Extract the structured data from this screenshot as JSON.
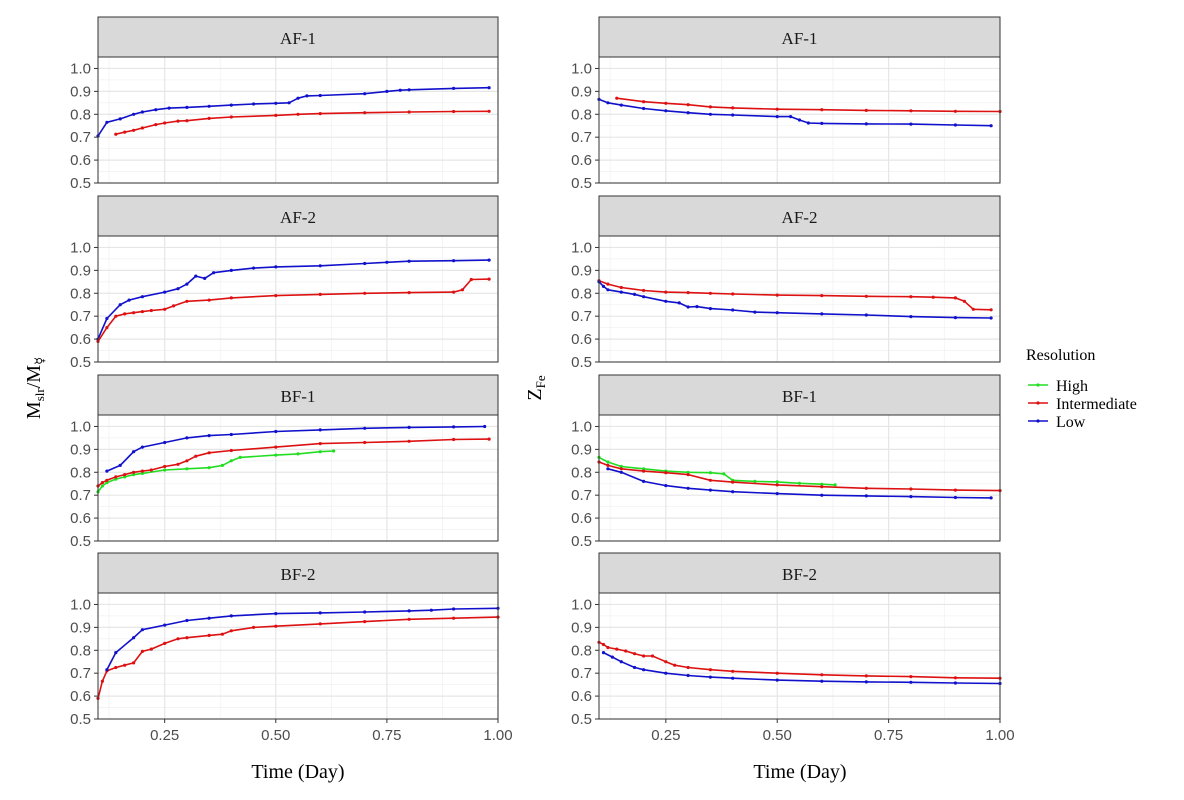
{
  "chart_data": {
    "type": "line",
    "layout": "faceted 4 rows x 2 columns",
    "x_label": "Time (Day)",
    "x_ticks": [
      "0.25",
      "0.50",
      "0.75",
      "1.00"
    ],
    "xlim": [
      0.1,
      1.0
    ],
    "y_ticks": [
      "0.5",
      "0.6",
      "0.7",
      "0.8",
      "0.9",
      "1.0"
    ],
    "ylim": [
      0.5,
      1.05
    ],
    "legend": {
      "title": "Resolution",
      "entries": [
        {
          "name": "High",
          "color": "#22dd22"
        },
        {
          "name": "Intermediate",
          "color": "#dd1111"
        },
        {
          "name": "Low",
          "color": "#1111cc"
        }
      ]
    },
    "columns": [
      {
        "y_label_main": "M",
        "y_label_sub": "slr",
        "y_label_sep": "/M",
        "y_label_sub2": "☿",
        "panels": [
          {
            "strip": "AF-1",
            "series": [
              {
                "name": "Low",
                "x": [
                  0.1,
                  0.12,
                  0.15,
                  0.18,
                  0.2,
                  0.23,
                  0.26,
                  0.3,
                  0.35,
                  0.4,
                  0.45,
                  0.5,
                  0.53,
                  0.55,
                  0.57,
                  0.6,
                  0.7,
                  0.75,
                  0.78,
                  0.8,
                  0.9,
                  0.98
                ],
                "y": [
                  0.705,
                  0.765,
                  0.78,
                  0.8,
                  0.81,
                  0.82,
                  0.827,
                  0.83,
                  0.835,
                  0.84,
                  0.845,
                  0.848,
                  0.85,
                  0.87,
                  0.88,
                  0.882,
                  0.89,
                  0.9,
                  0.905,
                  0.907,
                  0.913,
                  0.916
                ]
              },
              {
                "name": "Intermediate",
                "x": [
                  0.14,
                  0.16,
                  0.18,
                  0.2,
                  0.23,
                  0.25,
                  0.28,
                  0.3,
                  0.35,
                  0.4,
                  0.5,
                  0.55,
                  0.6,
                  0.7,
                  0.8,
                  0.9,
                  0.98
                ],
                "y": [
                  0.713,
                  0.722,
                  0.73,
                  0.74,
                  0.755,
                  0.762,
                  0.77,
                  0.772,
                  0.782,
                  0.788,
                  0.795,
                  0.8,
                  0.803,
                  0.807,
                  0.81,
                  0.812,
                  0.813
                ]
              }
            ]
          },
          {
            "strip": "AF-2",
            "series": [
              {
                "name": "Low",
                "x": [
                  0.1,
                  0.12,
                  0.15,
                  0.17,
                  0.2,
                  0.25,
                  0.28,
                  0.3,
                  0.32,
                  0.34,
                  0.36,
                  0.4,
                  0.45,
                  0.5,
                  0.6,
                  0.7,
                  0.75,
                  0.8,
                  0.9,
                  0.98
                ],
                "y": [
                  0.6,
                  0.69,
                  0.75,
                  0.77,
                  0.785,
                  0.805,
                  0.82,
                  0.84,
                  0.875,
                  0.865,
                  0.89,
                  0.9,
                  0.91,
                  0.915,
                  0.92,
                  0.93,
                  0.935,
                  0.94,
                  0.942,
                  0.945
                ]
              },
              {
                "name": "Intermediate",
                "x": [
                  0.1,
                  0.12,
                  0.14,
                  0.16,
                  0.18,
                  0.2,
                  0.22,
                  0.25,
                  0.27,
                  0.3,
                  0.35,
                  0.4,
                  0.5,
                  0.6,
                  0.7,
                  0.8,
                  0.9,
                  0.92,
                  0.94,
                  0.98
                ],
                "y": [
                  0.59,
                  0.65,
                  0.7,
                  0.71,
                  0.715,
                  0.72,
                  0.725,
                  0.73,
                  0.745,
                  0.765,
                  0.77,
                  0.78,
                  0.79,
                  0.795,
                  0.8,
                  0.803,
                  0.805,
                  0.815,
                  0.86,
                  0.862
                ]
              }
            ]
          },
          {
            "strip": "BF-1",
            "series": [
              {
                "name": "High",
                "x": [
                  0.1,
                  0.11,
                  0.12,
                  0.14,
                  0.16,
                  0.18,
                  0.2,
                  0.25,
                  0.3,
                  0.35,
                  0.38,
                  0.4,
                  0.42,
                  0.5,
                  0.55,
                  0.6,
                  0.63
                ],
                "y": [
                  0.715,
                  0.74,
                  0.755,
                  0.77,
                  0.78,
                  0.79,
                  0.795,
                  0.81,
                  0.815,
                  0.82,
                  0.83,
                  0.85,
                  0.865,
                  0.875,
                  0.88,
                  0.89,
                  0.893
                ]
              },
              {
                "name": "Intermediate",
                "x": [
                  0.1,
                  0.11,
                  0.12,
                  0.14,
                  0.16,
                  0.18,
                  0.2,
                  0.22,
                  0.25,
                  0.28,
                  0.3,
                  0.32,
                  0.35,
                  0.4,
                  0.5,
                  0.6,
                  0.7,
                  0.8,
                  0.9,
                  0.98
                ],
                "y": [
                  0.74,
                  0.755,
                  0.765,
                  0.78,
                  0.79,
                  0.8,
                  0.805,
                  0.81,
                  0.825,
                  0.835,
                  0.85,
                  0.87,
                  0.885,
                  0.895,
                  0.91,
                  0.925,
                  0.93,
                  0.935,
                  0.943,
                  0.945
                ]
              },
              {
                "name": "Low",
                "x": [
                  0.12,
                  0.15,
                  0.18,
                  0.2,
                  0.25,
                  0.3,
                  0.35,
                  0.4,
                  0.5,
                  0.6,
                  0.7,
                  0.8,
                  0.9,
                  0.97
                ],
                "y": [
                  0.805,
                  0.83,
                  0.89,
                  0.91,
                  0.93,
                  0.95,
                  0.96,
                  0.965,
                  0.978,
                  0.985,
                  0.992,
                  0.996,
                  0.998,
                  1.0
                ]
              }
            ]
          },
          {
            "strip": "BF-2",
            "series": [
              {
                "name": "Intermediate",
                "x": [
                  0.1,
                  0.11,
                  0.12,
                  0.14,
                  0.16,
                  0.18,
                  0.2,
                  0.22,
                  0.25,
                  0.28,
                  0.3,
                  0.35,
                  0.38,
                  0.4,
                  0.45,
                  0.5,
                  0.6,
                  0.7,
                  0.8,
                  0.9,
                  1.0
                ],
                "y": [
                  0.59,
                  0.665,
                  0.71,
                  0.725,
                  0.735,
                  0.745,
                  0.795,
                  0.805,
                  0.83,
                  0.85,
                  0.855,
                  0.865,
                  0.87,
                  0.885,
                  0.9,
                  0.905,
                  0.915,
                  0.925,
                  0.935,
                  0.94,
                  0.945
                ]
              },
              {
                "name": "Low",
                "x": [
                  0.12,
                  0.14,
                  0.18,
                  0.2,
                  0.25,
                  0.3,
                  0.35,
                  0.4,
                  0.5,
                  0.6,
                  0.7,
                  0.8,
                  0.85,
                  0.9,
                  1.0
                ],
                "y": [
                  0.715,
                  0.79,
                  0.855,
                  0.89,
                  0.91,
                  0.93,
                  0.94,
                  0.95,
                  0.96,
                  0.963,
                  0.967,
                  0.972,
                  0.975,
                  0.98,
                  0.983
                ]
              }
            ]
          }
        ]
      },
      {
        "y_label_main": "Z",
        "y_label_sub": "Fe",
        "y_label_sep": "",
        "y_label_sub2": "",
        "panels": [
          {
            "strip": "AF-1",
            "series": [
              {
                "name": "Intermediate",
                "x": [
                  0.14,
                  0.2,
                  0.25,
                  0.3,
                  0.35,
                  0.4,
                  0.5,
                  0.6,
                  0.7,
                  0.8,
                  0.9,
                  1.0
                ],
                "y": [
                  0.87,
                  0.855,
                  0.848,
                  0.842,
                  0.832,
                  0.828,
                  0.822,
                  0.82,
                  0.817,
                  0.815,
                  0.813,
                  0.812
                ]
              },
              {
                "name": "Low",
                "x": [
                  0.1,
                  0.12,
                  0.15,
                  0.2,
                  0.25,
                  0.3,
                  0.35,
                  0.4,
                  0.5,
                  0.53,
                  0.55,
                  0.57,
                  0.6,
                  0.7,
                  0.8,
                  0.9,
                  0.98
                ],
                "y": [
                  0.865,
                  0.85,
                  0.84,
                  0.825,
                  0.815,
                  0.807,
                  0.8,
                  0.797,
                  0.79,
                  0.79,
                  0.775,
                  0.762,
                  0.76,
                  0.758,
                  0.757,
                  0.753,
                  0.75
                ]
              }
            ]
          },
          {
            "strip": "AF-2",
            "series": [
              {
                "name": "Intermediate",
                "x": [
                  0.1,
                  0.12,
                  0.15,
                  0.2,
                  0.25,
                  0.3,
                  0.35,
                  0.4,
                  0.5,
                  0.6,
                  0.7,
                  0.8,
                  0.85,
                  0.9,
                  0.92,
                  0.94,
                  0.98
                ],
                "y": [
                  0.855,
                  0.84,
                  0.825,
                  0.812,
                  0.805,
                  0.803,
                  0.8,
                  0.797,
                  0.792,
                  0.79,
                  0.787,
                  0.785,
                  0.783,
                  0.78,
                  0.765,
                  0.73,
                  0.728
                ]
              },
              {
                "name": "Low",
                "x": [
                  0.1,
                  0.11,
                  0.12,
                  0.15,
                  0.18,
                  0.2,
                  0.25,
                  0.28,
                  0.3,
                  0.32,
                  0.35,
                  0.4,
                  0.45,
                  0.5,
                  0.6,
                  0.7,
                  0.8,
                  0.9,
                  0.98
                ],
                "y": [
                  0.85,
                  0.83,
                  0.815,
                  0.805,
                  0.795,
                  0.785,
                  0.765,
                  0.758,
                  0.74,
                  0.742,
                  0.733,
                  0.727,
                  0.718,
                  0.715,
                  0.71,
                  0.705,
                  0.698,
                  0.694,
                  0.692
                ]
              }
            ]
          },
          {
            "strip": "BF-1",
            "series": [
              {
                "name": "High",
                "x": [
                  0.1,
                  0.12,
                  0.15,
                  0.2,
                  0.25,
                  0.3,
                  0.35,
                  0.38,
                  0.4,
                  0.45,
                  0.5,
                  0.55,
                  0.6,
                  0.63
                ],
                "y": [
                  0.865,
                  0.845,
                  0.825,
                  0.815,
                  0.805,
                  0.8,
                  0.798,
                  0.793,
                  0.765,
                  0.76,
                  0.758,
                  0.752,
                  0.748,
                  0.745
                ]
              },
              {
                "name": "Intermediate",
                "x": [
                  0.1,
                  0.12,
                  0.15,
                  0.2,
                  0.25,
                  0.3,
                  0.35,
                  0.4,
                  0.5,
                  0.6,
                  0.7,
                  0.8,
                  0.9,
                  1.0
                ],
                "y": [
                  0.845,
                  0.83,
                  0.815,
                  0.805,
                  0.798,
                  0.79,
                  0.765,
                  0.757,
                  0.745,
                  0.737,
                  0.73,
                  0.727,
                  0.722,
                  0.72
                ]
              },
              {
                "name": "Low",
                "x": [
                  0.12,
                  0.15,
                  0.2,
                  0.25,
                  0.3,
                  0.35,
                  0.4,
                  0.5,
                  0.6,
                  0.7,
                  0.8,
                  0.9,
                  0.98
                ],
                "y": [
                  0.815,
                  0.8,
                  0.76,
                  0.742,
                  0.73,
                  0.722,
                  0.715,
                  0.707,
                  0.7,
                  0.697,
                  0.694,
                  0.69,
                  0.688
                ]
              }
            ]
          },
          {
            "strip": "BF-2",
            "series": [
              {
                "name": "Intermediate",
                "x": [
                  0.1,
                  0.11,
                  0.12,
                  0.14,
                  0.16,
                  0.18,
                  0.2,
                  0.22,
                  0.25,
                  0.27,
                  0.3,
                  0.35,
                  0.4,
                  0.5,
                  0.6,
                  0.7,
                  0.8,
                  0.9,
                  1.0
                ],
                "y": [
                  0.835,
                  0.825,
                  0.812,
                  0.805,
                  0.797,
                  0.785,
                  0.775,
                  0.775,
                  0.75,
                  0.735,
                  0.725,
                  0.715,
                  0.708,
                  0.7,
                  0.693,
                  0.688,
                  0.685,
                  0.68,
                  0.678
                ]
              },
              {
                "name": "Low",
                "x": [
                  0.11,
                  0.13,
                  0.15,
                  0.18,
                  0.2,
                  0.25,
                  0.3,
                  0.35,
                  0.4,
                  0.5,
                  0.6,
                  0.7,
                  0.8,
                  0.9,
                  1.0
                ],
                "y": [
                  0.79,
                  0.77,
                  0.75,
                  0.725,
                  0.715,
                  0.7,
                  0.69,
                  0.683,
                  0.678,
                  0.67,
                  0.665,
                  0.662,
                  0.66,
                  0.657,
                  0.655
                ]
              }
            ]
          }
        ]
      }
    ]
  }
}
